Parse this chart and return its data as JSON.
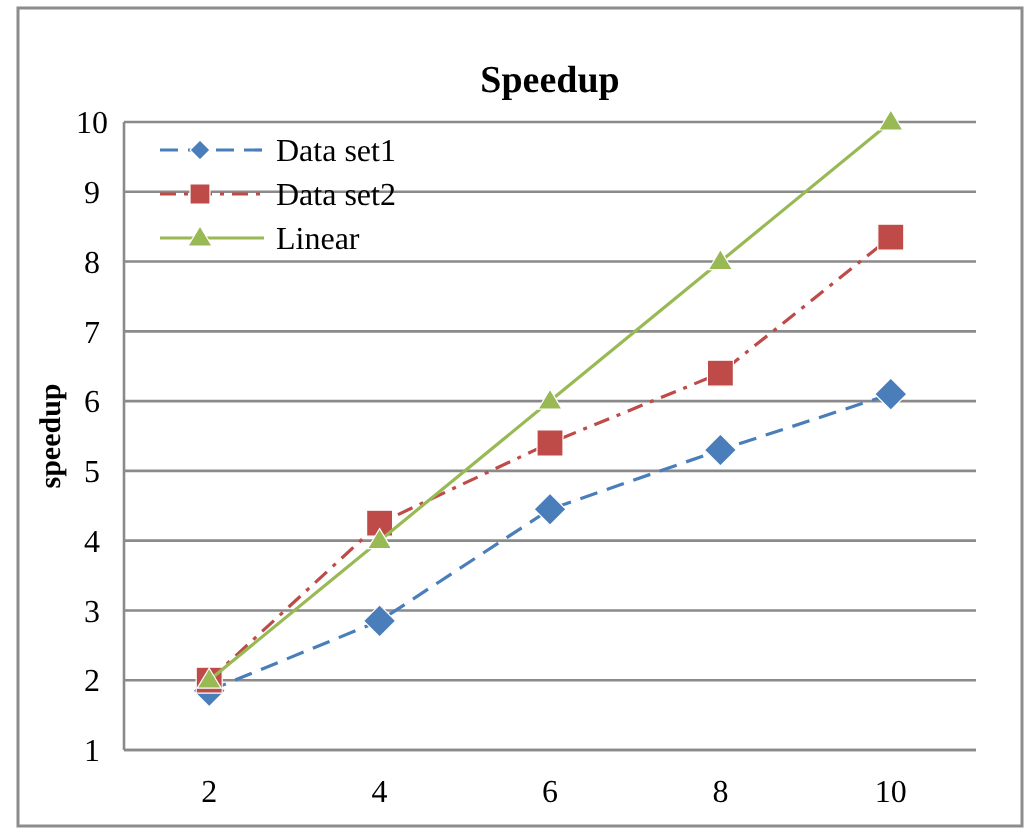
{
  "chart_data": {
    "type": "line",
    "title": "Speedup",
    "ylabel": "speedup",
    "categories": [
      "2",
      "4",
      "6",
      "8",
      "10"
    ],
    "series": [
      {
        "name": "Data set1",
        "color": "#4a7ebb",
        "values": [
          1.85,
          2.85,
          4.45,
          5.3,
          6.1
        ],
        "marker": "diamond",
        "line_style": "dashed"
      },
      {
        "name": "Data set2",
        "color": "#be4b48",
        "values": [
          2.0,
          4.25,
          5.4,
          6.4,
          8.35
        ],
        "marker": "square",
        "line_style": "dashdot"
      },
      {
        "name": "Linear",
        "color": "#98b954",
        "values": [
          2,
          4,
          6,
          8,
          10
        ],
        "marker": "triangle",
        "line_style": "solid"
      }
    ],
    "ylim": [
      1,
      10
    ],
    "yticks": [
      1,
      2,
      3,
      4,
      5,
      6,
      7,
      8,
      9,
      10
    ],
    "grid": "y",
    "legend": "top left"
  }
}
